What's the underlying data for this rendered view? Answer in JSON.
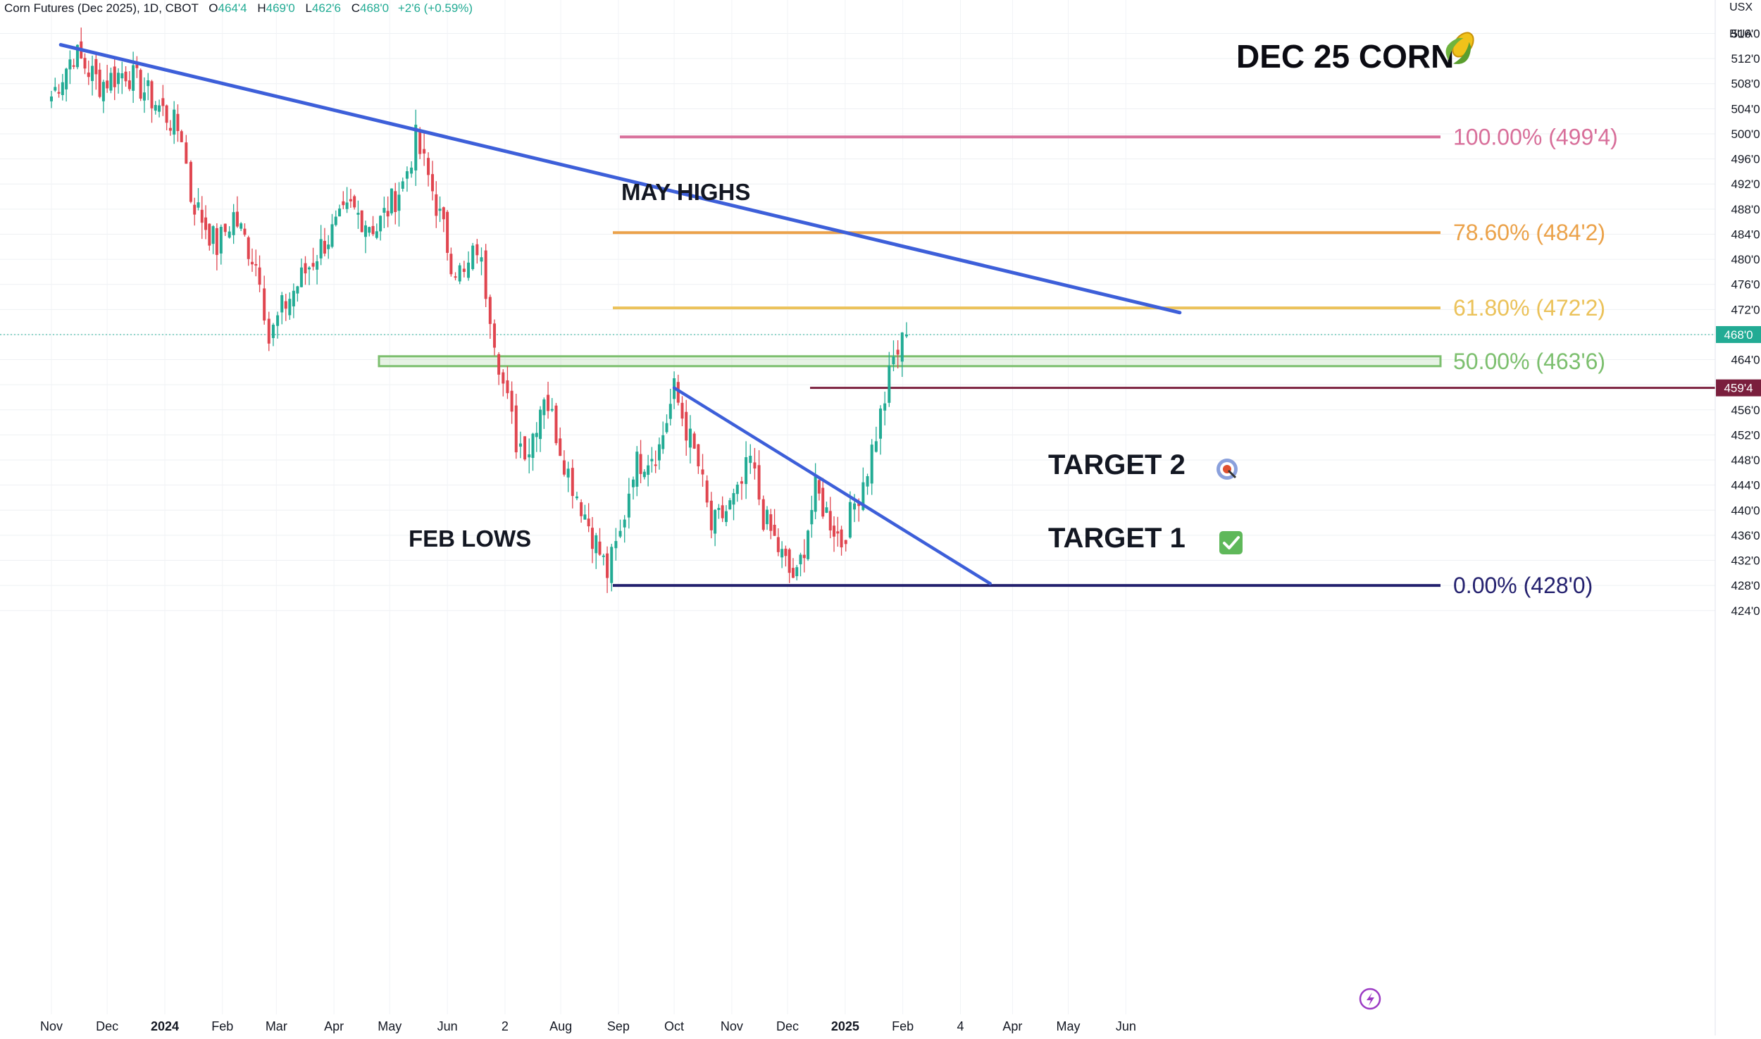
{
  "header": {
    "symbol": "Corn Futures (Dec 2025), 1D, CBOT",
    "open_label": "O",
    "open": "464'4",
    "high_label": "H",
    "high": "469'0",
    "low_label": "L",
    "low": "462'6",
    "close_label": "C",
    "close": "468'0",
    "change": "+2'6 (+0.59%)"
  },
  "axis_unit": {
    "line1": "USX",
    "line2": "BUA"
  },
  "current_price_tag": "468'0",
  "level_tag": "459'4",
  "colors": {
    "up": "#22ab94",
    "down": "#e0454f",
    "trendline": "#3d5fd9",
    "fib100": "#d86f9a",
    "fib786": "#eba24a",
    "fib618": "#ebc25a",
    "fib50": "#7cbf6e",
    "fib0": "#23206e",
    "level": "#7a1f3d"
  },
  "icons": {
    "target2": "target-icon",
    "target1": "check-icon",
    "title": "corn-icon",
    "replay": "lightning-icon"
  },
  "chart_data": {
    "type": "candlestick",
    "title": "DEC 25 CORN",
    "y_unit": "USX/BUA",
    "ylim": [
      422,
      518
    ],
    "y_ticks": [
      "516'0",
      "512'0",
      "508'0",
      "504'0",
      "500'0",
      "496'0",
      "492'0",
      "488'0",
      "484'0",
      "480'0",
      "476'0",
      "472'0",
      "468'0",
      "464'0",
      "460'0",
      "456'0",
      "452'0",
      "448'0",
      "444'0",
      "440'0",
      "436'0",
      "432'0",
      "428'0",
      "424'0"
    ],
    "x_ticks": [
      "Nov",
      "Dec",
      "2024",
      "Feb",
      "Mar",
      "Apr",
      "May",
      "Jun",
      "2",
      "Aug",
      "Sep",
      "Oct",
      "Nov",
      "Dec",
      "2025",
      "Feb",
      "4",
      "Apr",
      "May",
      "Jun"
    ],
    "price_series": [
      {
        "date": "2023-11-01",
        "close": 506
      },
      {
        "date": "2023-11-13",
        "close": 513
      },
      {
        "date": "2023-11-27",
        "close": 508
      },
      {
        "date": "2023-12-11",
        "close": 510
      },
      {
        "date": "2023-12-27",
        "close": 505
      },
      {
        "date": "2024-01-10",
        "close": 500
      },
      {
        "date": "2024-01-15",
        "close": 490
      },
      {
        "date": "2024-01-29",
        "close": 482
      },
      {
        "date": "2024-02-07",
        "close": 487
      },
      {
        "date": "2024-02-21",
        "close": 478
      },
      {
        "date": "2024-02-26",
        "close": 467
      },
      {
        "date": "2024-03-04",
        "close": 472
      },
      {
        "date": "2024-03-25",
        "close": 482
      },
      {
        "date": "2024-04-10",
        "close": 488
      },
      {
        "date": "2024-04-24",
        "close": 485
      },
      {
        "date": "2024-05-08",
        "close": 492
      },
      {
        "date": "2024-05-15",
        "close": 499
      },
      {
        "date": "2024-05-24",
        "close": 491
      },
      {
        "date": "2024-06-03",
        "close": 480
      },
      {
        "date": "2024-06-10",
        "close": 477
      },
      {
        "date": "2024-06-17",
        "close": 482
      },
      {
        "date": "2024-06-24",
        "close": 472
      },
      {
        "date": "2024-07-01",
        "close": 460
      },
      {
        "date": "2024-07-08",
        "close": 451
      },
      {
        "date": "2024-07-15",
        "close": 450
      },
      {
        "date": "2024-07-23",
        "close": 459
      },
      {
        "date": "2024-08-05",
        "close": 446
      },
      {
        "date": "2024-08-12",
        "close": 441
      },
      {
        "date": "2024-08-26",
        "close": 430
      },
      {
        "date": "2024-09-02",
        "close": 436
      },
      {
        "date": "2024-09-09",
        "close": 447
      },
      {
        "date": "2024-09-23",
        "close": 450
      },
      {
        "date": "2024-10-01",
        "close": 459
      },
      {
        "date": "2024-10-14",
        "close": 447
      },
      {
        "date": "2024-10-21",
        "close": 437
      },
      {
        "date": "2024-11-04",
        "close": 442
      },
      {
        "date": "2024-11-11",
        "close": 448
      },
      {
        "date": "2024-11-18",
        "close": 439
      },
      {
        "date": "2024-12-02",
        "close": 430
      },
      {
        "date": "2024-12-06",
        "close": 429
      },
      {
        "date": "2024-12-16",
        "close": 443
      },
      {
        "date": "2024-12-30",
        "close": 435
      },
      {
        "date": "2025-01-06",
        "close": 441
      },
      {
        "date": "2025-01-13",
        "close": 447
      },
      {
        "date": "2025-01-20",
        "close": 455
      },
      {
        "date": "2025-01-27",
        "close": 464
      },
      {
        "date": "2025-02-03",
        "close": 468
      }
    ],
    "fib_levels": [
      {
        "label": "100.00% (499'4)",
        "value": 499.5
      },
      {
        "label": "78.60% (484'2)",
        "value": 484.25
      },
      {
        "label": "61.80% (472'2)",
        "value": 472.25
      },
      {
        "label": "50.00% (463'6)",
        "value": 463.75
      },
      {
        "label": "0.00% (428'0)",
        "value": 428.0
      }
    ],
    "horizontal_level": {
      "label": "459'4",
      "value": 459.5
    },
    "trendlines": [
      {
        "from": {
          "date": "2023-11-06",
          "value": 514.2
        },
        "to": {
          "date": "2025-06-30",
          "value": 471.5
        }
      },
      {
        "from": {
          "date": "2024-10-01",
          "value": 459.5
        },
        "to": {
          "date": "2025-03-20",
          "value": 428.3
        }
      }
    ],
    "annotations": [
      {
        "text": "MAY HIGHS",
        "date": "2024-05-15",
        "value": 500
      },
      {
        "text": "FEB LOWS",
        "date": "2024-02-26",
        "value": 466
      },
      {
        "text": "TARGET 2",
        "value": 472.25
      },
      {
        "text": "TARGET 1",
        "value": 463.75
      }
    ]
  }
}
